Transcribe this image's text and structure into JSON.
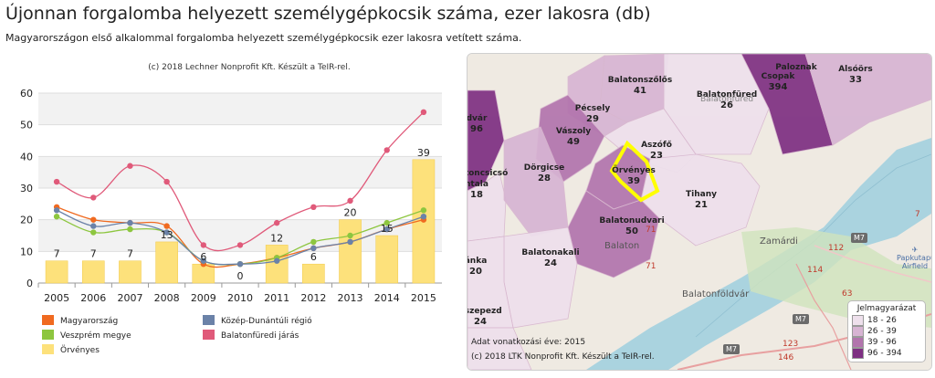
{
  "header": {
    "title": "Újonnan forgalomba helyezett személygépkocsik száma, ezer lakosra (db)",
    "subtitle": "Magyarországon első alkalommal forgalomba helyezett személygépkocsik ezer lakosra vetített száma."
  },
  "chart_data": {
    "type": "bar",
    "credit": "(c) 2018 Lechner Nonprofit Kft. Készült a TeIR-rel.",
    "categories": [
      "2005",
      "2006",
      "2007",
      "2008",
      "2009",
      "2010",
      "2011",
      "2012",
      "2013",
      "2014",
      "2015"
    ],
    "ylim": [
      0,
      60
    ],
    "yticks": [
      0,
      10,
      20,
      30,
      40,
      50,
      60
    ],
    "grid": true,
    "legend_position": "bottom",
    "bar_series": {
      "name": "Örvényes",
      "color": "#fde17b",
      "values": [
        7,
        7,
        7,
        13,
        6,
        0,
        12,
        6,
        20,
        15,
        39
      ]
    },
    "series": [
      {
        "name": "Magyarország",
        "color": "#f06a20",
        "values": [
          24,
          20,
          19,
          18,
          6,
          6,
          8,
          11,
          13,
          17,
          20
        ]
      },
      {
        "name": "Veszprém megye",
        "color": "#8dc63f",
        "values": [
          21,
          16,
          17,
          16,
          7,
          6,
          8,
          13,
          15,
          19,
          23
        ]
      },
      {
        "name": "Közép-Dunántúli régió",
        "color": "#6b82a8",
        "values": [
          23,
          18,
          19,
          16,
          7,
          6,
          7,
          11,
          13,
          17,
          21
        ]
      },
      {
        "name": "Balatonfüredi járás",
        "color": "#e05a7a",
        "values": [
          32,
          27,
          37,
          32,
          12,
          12,
          19,
          24,
          26,
          42,
          54
        ]
      }
    ],
    "legend": [
      {
        "name": "Magyarország",
        "color": "#f06a20"
      },
      {
        "name": "Közép-Dunántúli régió",
        "color": "#6b82a8"
      },
      {
        "name": "Veszprém megye",
        "color": "#8dc63f"
      },
      {
        "name": "Balatonfüredi járás",
        "color": "#e05a7a"
      },
      {
        "name": "Örvényes",
        "color": "#fde17b"
      }
    ]
  },
  "map": {
    "labels": [
      {
        "name": "Balatonszőlős",
        "value": "41"
      },
      {
        "name": "Paloznak",
        "value": ""
      },
      {
        "name": "Csopak",
        "value": "394"
      },
      {
        "name": "Alsóörs",
        "value": "33"
      },
      {
        "name": "Balatonfüred",
        "value": "26"
      },
      {
        "name": "Pécsely",
        "value": "29"
      },
      {
        "name": "Vászoly",
        "value": "49"
      },
      {
        "name": "Aszófő",
        "value": "23"
      },
      {
        "name": "Dörgicse",
        "value": "28"
      },
      {
        "name": "Örvényes",
        "value": "39"
      },
      {
        "name": "Tihany",
        "value": "21"
      },
      {
        "name": "Balatonudvari",
        "value": "50"
      },
      {
        "name": "Balatonakali",
        "value": "24"
      },
      {
        "name": "dvár",
        "value": "96"
      },
      {
        "name": "latoncsicsó",
        "value": ""
      },
      {
        "name": "ntala",
        "value": "18"
      },
      {
        "name": "ánka",
        "value": "20"
      },
      {
        "name": "nszepezd",
        "value": "24"
      }
    ],
    "places": [
      "Balaton",
      "Zamárdi",
      "Balatonföldvár",
      "Balatonfüred"
    ],
    "airport": "Papkutapuszta Airfield",
    "roads": [
      "M7",
      "M7",
      "M7",
      "71",
      "71",
      "7",
      "114",
      "112",
      "123",
      "146",
      "63"
    ],
    "legend": {
      "title": "Jelmagyarázat",
      "ranges": [
        {
          "label": "18 -  26",
          "color": "#eee0ec"
        },
        {
          "label": "26 -  39",
          "color": "#d7b4d3"
        },
        {
          "label": "39 -  96",
          "color": "#b274ad"
        },
        {
          "label": "96 - 394",
          "color": "#7e2f82"
        }
      ]
    },
    "footer_year": "Adat vonatkozási éve: 2015",
    "footer_credit": "(c) 2018 LTK Nonprofit Kft. Készült a TeIR-rel."
  }
}
